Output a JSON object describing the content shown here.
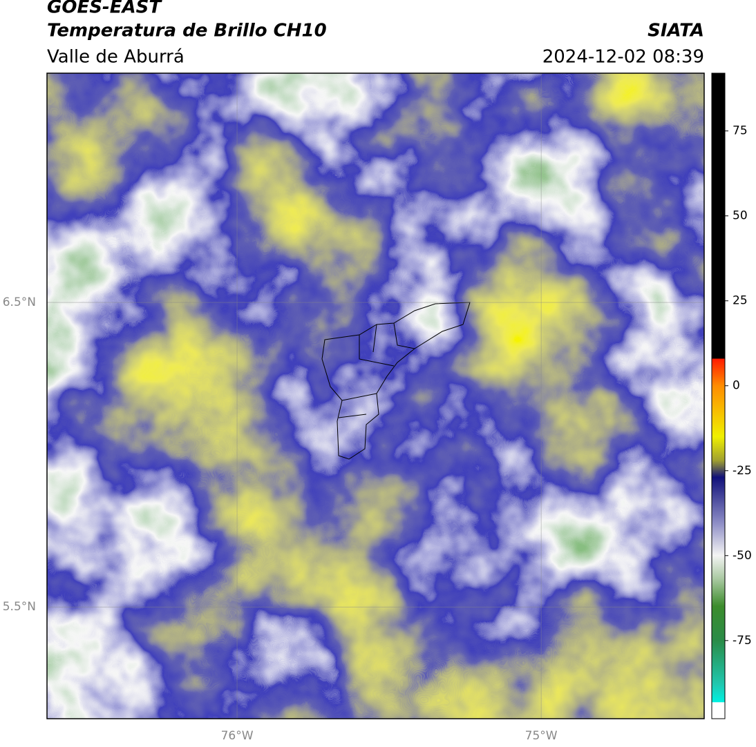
{
  "header": {
    "title": "GOES-EAST",
    "subtitle": "Temperatura de Brillo CH10",
    "region": "Valle de Aburrá",
    "source": "SIATA",
    "timestamp": "2024-12-02 08:39"
  },
  "map": {
    "xlim": [
      -76.625,
      -74.464
    ],
    "ylim": [
      5.133,
      7.253
    ],
    "xticks": [
      {
        "value": -76,
        "label": "76°W"
      },
      {
        "value": -75,
        "label": "75°W"
      }
    ],
    "yticks": [
      {
        "value": 6.5,
        "label": "6.5°N"
      },
      {
        "value": 5.5,
        "label": "5.5°N"
      }
    ],
    "grid": true
  },
  "colorbar": {
    "lim": [
      -98,
      92
    ],
    "ticks": [
      75,
      50,
      25,
      0,
      -25,
      -50,
      -75
    ]
  }
}
